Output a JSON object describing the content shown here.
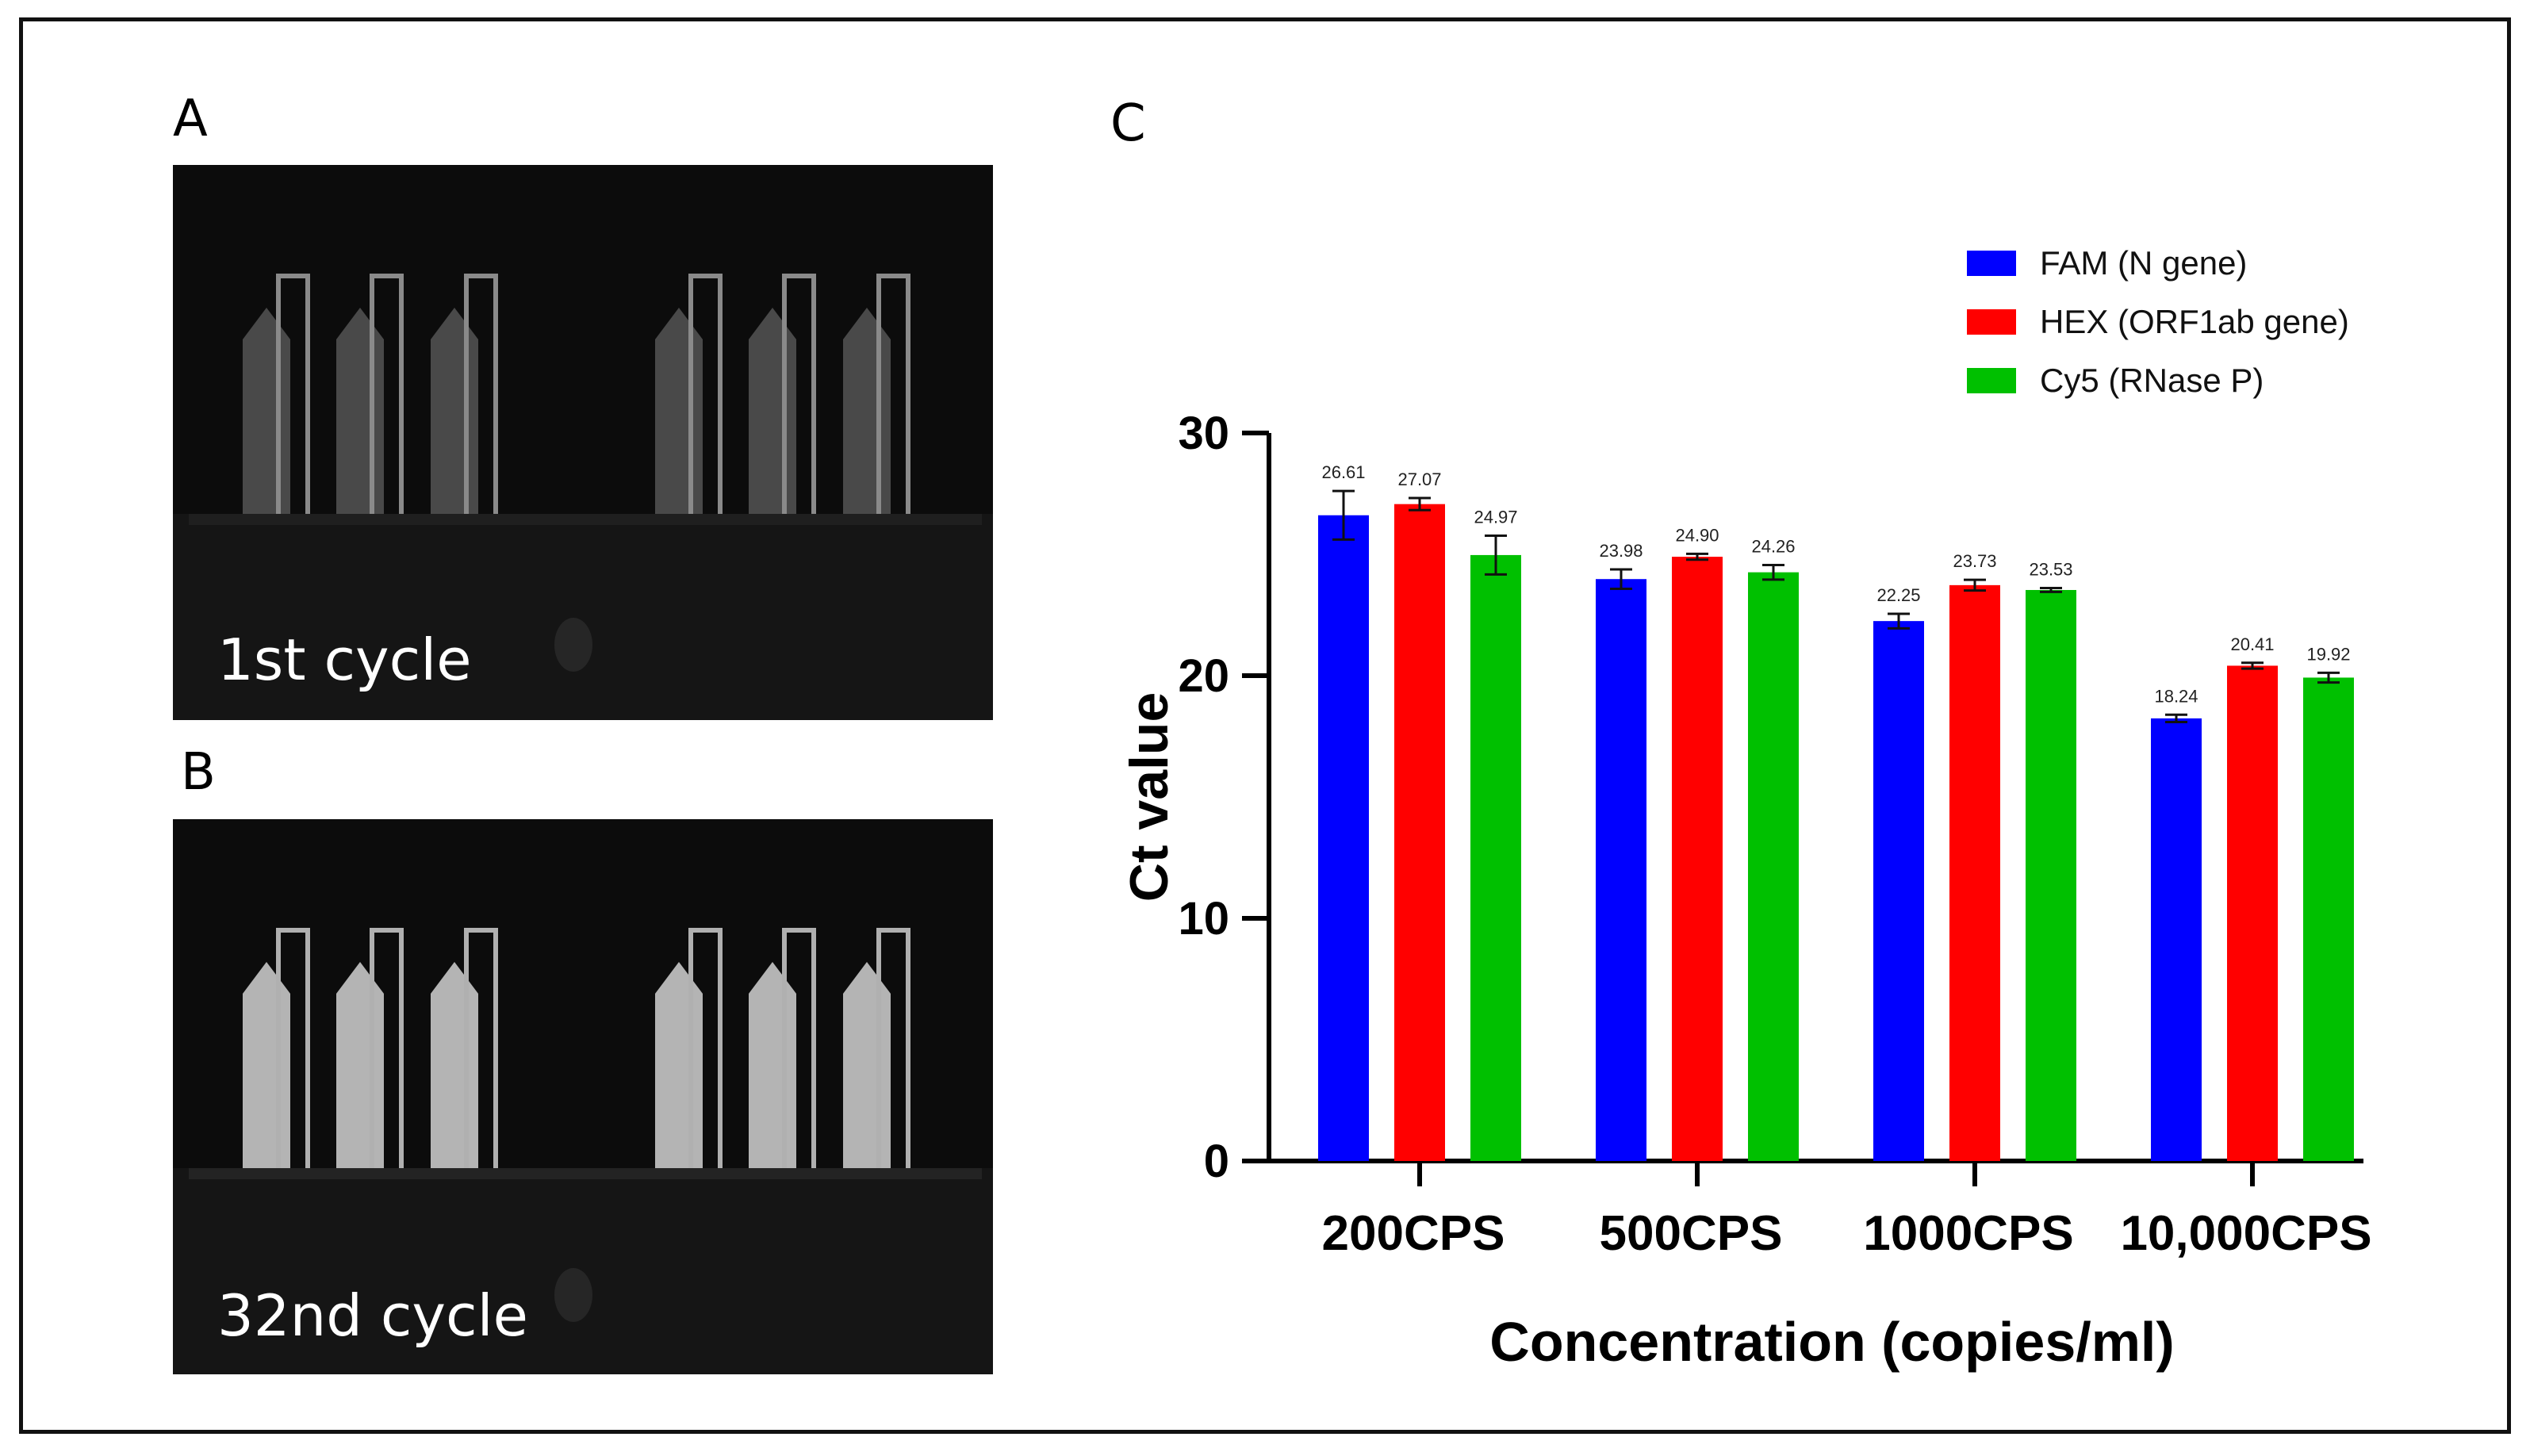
{
  "panels": {
    "a": {
      "letter": "A",
      "caption": "1st cycle"
    },
    "b": {
      "letter": "B",
      "caption": "32nd cycle"
    },
    "c": {
      "letter": "C"
    }
  },
  "colors": {
    "fam": "#0000ff",
    "hex": "#ff0000",
    "cy5": "#00c000",
    "axis": "#000000"
  },
  "chart_data": {
    "type": "bar",
    "title": "",
    "xlabel": "Concentration (copies/ml)",
    "ylabel": "Ct value",
    "ylim": [
      0,
      30
    ],
    "yticks": [
      0,
      10,
      20,
      30
    ],
    "categories": [
      "200CPS",
      "500CPS",
      "1000CPS",
      "10,000CPS"
    ],
    "series": [
      {
        "name": "FAM (N gene)",
        "color": "#0000ff",
        "values": [
          26.61,
          23.98,
          22.25,
          18.24
        ],
        "errors": [
          1.0,
          0.4,
          0.3,
          0.15
        ],
        "labels": [
          "26.61",
          "23.98",
          "22.25",
          "18.24"
        ]
      },
      {
        "name": "HEX (ORF1ab gene)",
        "color": "#ff0000",
        "values": [
          27.07,
          24.9,
          23.73,
          20.41
        ],
        "errors": [
          0.25,
          0.12,
          0.22,
          0.12
        ],
        "labels": [
          "27.07",
          "24.90",
          "23.73",
          "20.41"
        ]
      },
      {
        "name": "Cy5 (RNase P)",
        "color": "#00c000",
        "values": [
          24.97,
          24.26,
          23.53,
          19.92
        ],
        "errors": [
          0.8,
          0.3,
          0.08,
          0.2
        ],
        "labels": [
          "24.97",
          "24.26",
          "23.53",
          "19.92"
        ]
      }
    ],
    "legend_position": "top-right"
  }
}
